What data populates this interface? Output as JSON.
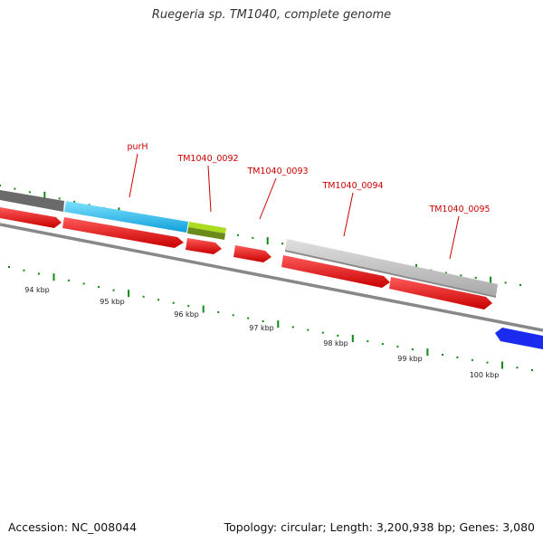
{
  "title": "Ruegeria sp. TM1040, complete genome",
  "footer": {
    "accession": "Accession: NC_008044",
    "summary": "Topology: circular; Length: 3,200,938 bp; Genes: 3,080"
  },
  "gene_labels": [
    "purH",
    "TM1040_0092",
    "TM1040_0093",
    "TM1040_0094",
    "TM1040_0095"
  ],
  "kbp_labels": [
    "94 kbp",
    "95 kbp",
    "96 kbp",
    "97 kbp",
    "98 kbp",
    "99 kbp",
    "100 kbp"
  ],
  "colors": {
    "cds": "#ee1111",
    "purH_gene": "#22c4f0",
    "gene_0092": "#aadd22",
    "gene_0092_dark": "#6a8a1a",
    "gene_0094_0095": "#c4c4c4",
    "left_gene": "#6a6a6a",
    "right_gene": "#1a2aee",
    "backbone": "#888888",
    "ticks": "#118811",
    "labels": "#cc0000"
  }
}
